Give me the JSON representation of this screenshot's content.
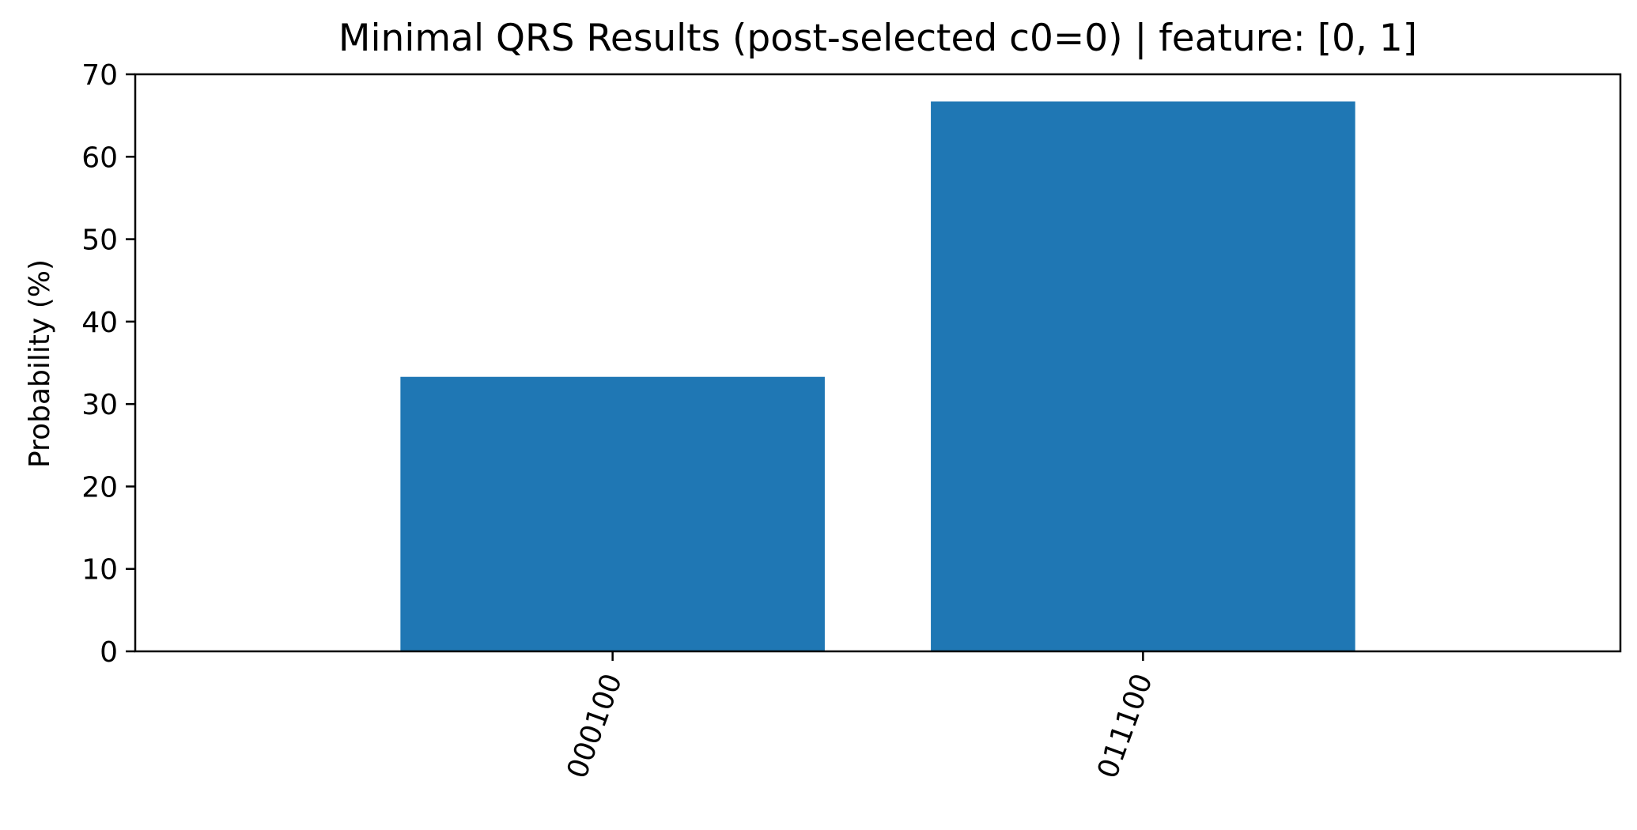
{
  "chart_data": {
    "type": "bar",
    "title": "Minimal QRS Results (post-selected c0=0) | feature: [0, 1]",
    "xlabel": "",
    "ylabel": "Probability (%)",
    "categories": [
      "000100",
      "011100"
    ],
    "values": [
      33.3,
      66.7
    ],
    "ylim": [
      0,
      70
    ],
    "yticks": [
      0,
      10,
      20,
      30,
      40,
      50,
      60,
      70
    ],
    "ytick_labels": [
      "0",
      "10",
      "20",
      "30",
      "40",
      "50",
      "60",
      "70"
    ],
    "grid": false,
    "legend": "none",
    "bar_color": "#1f77b4",
    "xtick_rotation_deg": 70
  }
}
